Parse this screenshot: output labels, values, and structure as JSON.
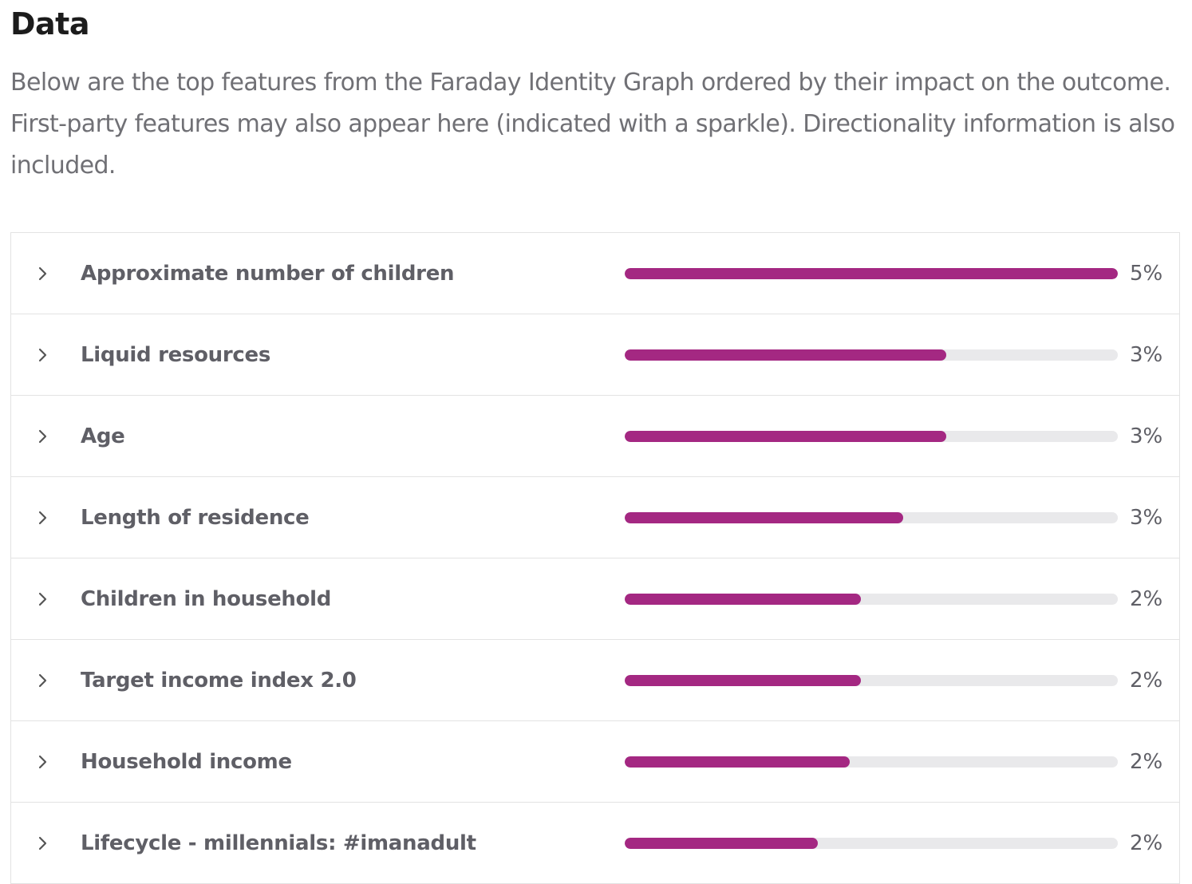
{
  "chart_data": {
    "type": "bar",
    "orientation": "horizontal",
    "title": "Data",
    "subtitle": "Below are the top features from the Faraday Identity Graph ordered by their impact on the outcome. First-party features may also appear here (indicated with a sparkle). Directionality information is also included.",
    "categories": [
      "Approximate number of children",
      "Liquid resources",
      "Age",
      "Length of residence",
      "Children in household",
      "Target income index 2.0",
      "Household income",
      "Lifecycle - millennials: #imanadult"
    ],
    "values": [
      4.6,
      3.0,
      3.0,
      2.6,
      2.2,
      2.2,
      2.1,
      1.8
    ],
    "value_labels": [
      "5%",
      "3%",
      "3%",
      "3%",
      "2%",
      "2%",
      "2%",
      "2%"
    ],
    "color": "#a42882"
  }
}
